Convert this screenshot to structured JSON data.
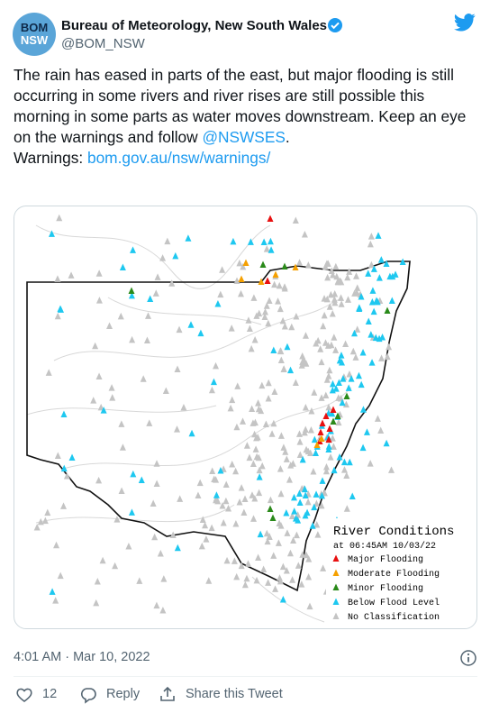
{
  "header": {
    "avatar_line1": "BOM",
    "avatar_line2": "NSW",
    "name": "Bureau of Meteorology, New South Wales",
    "handle": "@BOM_NSW"
  },
  "tweet": {
    "text": "The rain has eased in parts of the east, but major flooding is still occurring in some rivers and river rises are still possible this morning in some parts as water moves downstream. Keep an eye on the warnings and follow ",
    "mention": "@NSWSES",
    "after_mention": ".",
    "warnings_label": "Warnings: ",
    "link": "bom.gov.au/nsw/warnings/"
  },
  "map": {
    "legend": {
      "title": "River Conditions",
      "subtitle": "at 06:45AM 10/03/22",
      "items": [
        {
          "label": "Major Flooding",
          "color": "#e81010"
        },
        {
          "label": "Moderate Flooding",
          "color": "#f5a000"
        },
        {
          "label": "Minor Flooding",
          "color": "#2a8a1a"
        },
        {
          "label": "Below Flood Level",
          "color": "#1ec8f0"
        },
        {
          "label": "No Classification",
          "color": "#c4c4c4"
        }
      ]
    }
  },
  "footer": {
    "timestamp": "4:01 AM · Mar 10, 2022",
    "likes": 12,
    "reply": "Reply",
    "share": "Share this Tweet"
  }
}
